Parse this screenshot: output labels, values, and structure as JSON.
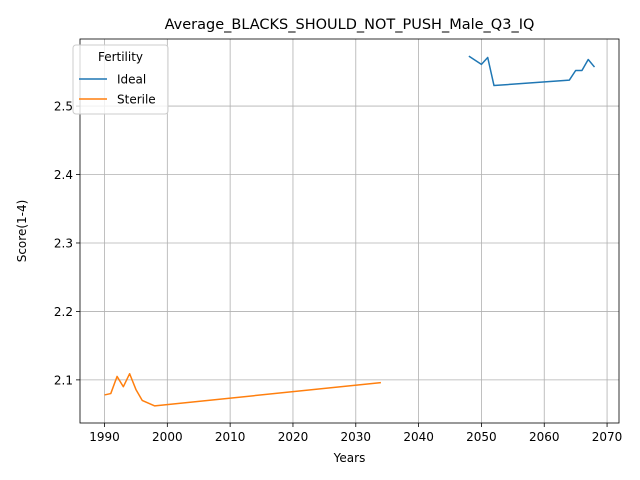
{
  "chart_data": {
    "type": "line",
    "title": "Average_BLACKS_SHOULD_NOT_PUSH_Male_Q3_IQ",
    "xlabel": "Years",
    "ylabel": "Score(1-4)",
    "xlim": [
      1986.1,
      2071.9
    ],
    "ylim": [
      2.037,
      2.598
    ],
    "xticks": [
      1990,
      2000,
      2010,
      2020,
      2030,
      2040,
      2050,
      2060,
      2070
    ],
    "yticks": [
      2.1,
      2.2,
      2.3,
      2.4,
      2.5
    ],
    "grid": true,
    "legend": {
      "title": "Fertility",
      "placement": "top-left"
    },
    "series": [
      {
        "name": "Ideal",
        "color": "#1f77b4",
        "x": [
          2048,
          2050,
          2051,
          2052,
          2064,
          2065,
          2066,
          2067,
          2068
        ],
        "y": [
          2.573,
          2.561,
          2.571,
          2.53,
          2.538,
          2.552,
          2.552,
          2.568,
          2.557
        ]
      },
      {
        "name": "Sterile",
        "color": "#ff7f0e",
        "x": [
          1990,
          1991,
          1992,
          1993,
          1994,
          1995,
          1996,
          1998,
          2034
        ],
        "y": [
          2.078,
          2.08,
          2.105,
          2.09,
          2.109,
          2.086,
          2.07,
          2.062,
          2.096
        ]
      }
    ]
  }
}
